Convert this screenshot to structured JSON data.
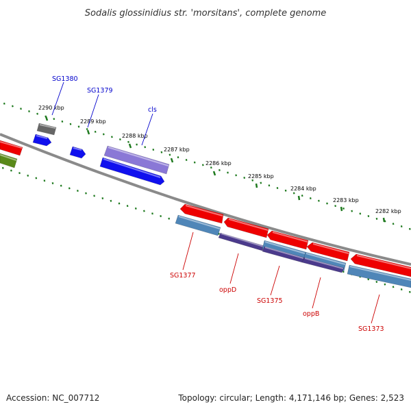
{
  "title": "Sodalis glossinidius str. 'morsitans', complete genome",
  "ticks": [
    "2290 kbp",
    "2289 kbp",
    "2288 kbp",
    "2287 kbp",
    "2286 kbp",
    "2285 kbp",
    "2284 kbp",
    "2283 kbp",
    "2282 kbp"
  ],
  "genes_forward": [
    "SG1380",
    "SG1379",
    "cls"
  ],
  "genes_reverse": [
    "SG1377",
    "oppD",
    "SG1375",
    "oppB",
    "SG1373"
  ],
  "colors": {
    "backbone": "#8a8a8a",
    "tick": "#1f7a1f",
    "forward_label": "#0000cc",
    "reverse_label": "#cc0000",
    "red_gene": "#ee0000",
    "steel_gene": "#4f86b8",
    "purple_gene": "#4b3a8c",
    "lavender_gene": "#8a78d6",
    "blue_gene": "#1010ee",
    "gray_gene": "#666666",
    "olive_gene": "#5a8a1a"
  },
  "footer": {
    "accession": "Accession: NC_007712",
    "info": "Topology: circular; Length: 4,171,146 bp; Genes: 2,523"
  }
}
